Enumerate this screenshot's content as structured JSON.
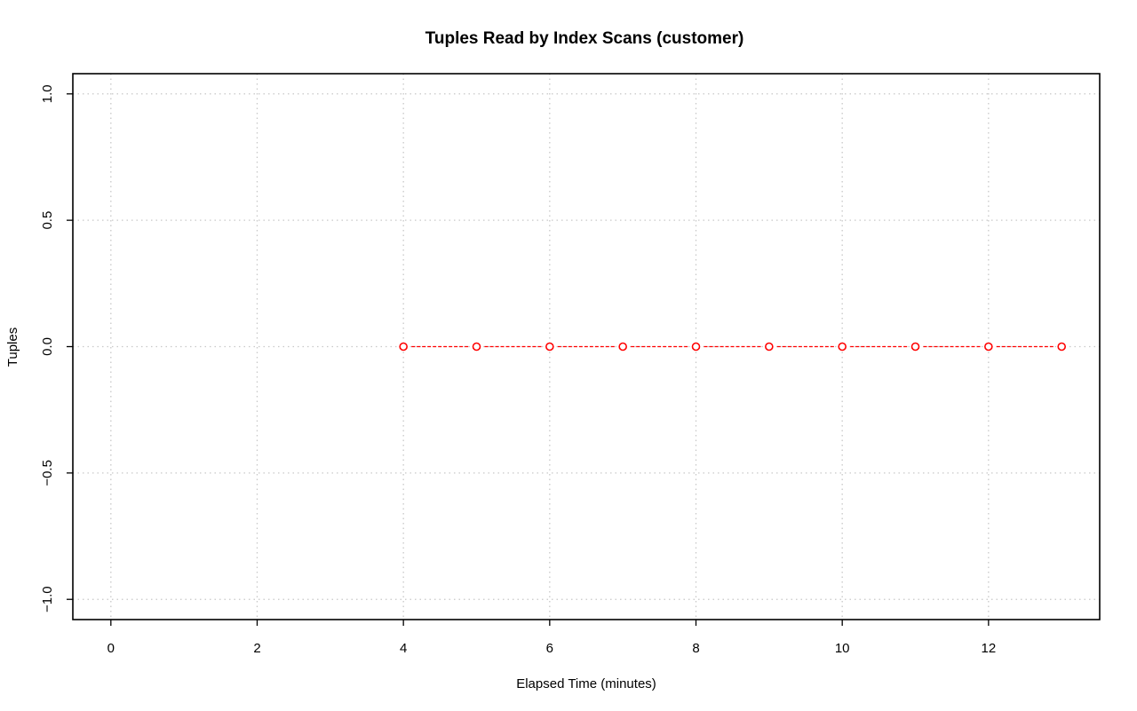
{
  "chart_data": {
    "type": "line",
    "title": "Tuples Read by Index Scans (customer)",
    "xlabel": "Elapsed Time (minutes)",
    "ylabel": "Tuples",
    "xlim": [
      -0.52,
      13.52
    ],
    "ylim": [
      -1.08,
      1.08
    ],
    "x_ticks": [
      0,
      2,
      4,
      6,
      8,
      10,
      12
    ],
    "x_tick_labels": [
      "0",
      "2",
      "4",
      "6",
      "8",
      "10",
      "12"
    ],
    "y_ticks": [
      -1.0,
      -0.5,
      0.0,
      0.5,
      1.0
    ],
    "y_tick_labels": [
      "−1.0",
      "−0.5",
      "0.0",
      "0.5",
      "1.0"
    ],
    "grid": true,
    "series": [
      {
        "name": "customer",
        "color": "#ff0000",
        "line_style": "dashed",
        "marker": "open-circle",
        "x": [
          4,
          5,
          6,
          7,
          8,
          9,
          10,
          11,
          12,
          13
        ],
        "y": [
          0,
          0,
          0,
          0,
          0,
          0,
          0,
          0,
          0,
          0
        ]
      }
    ]
  }
}
